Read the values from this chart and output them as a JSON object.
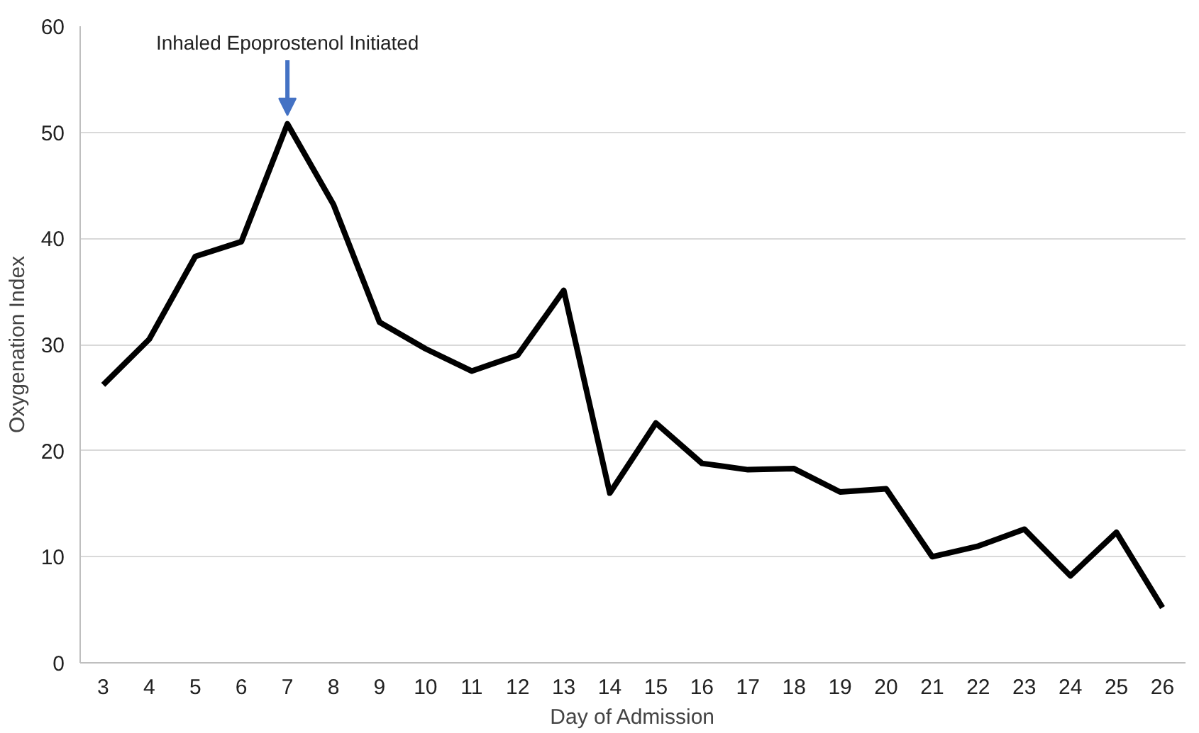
{
  "chart_data": {
    "type": "line",
    "xlabel": "Day of Admission",
    "ylabel": "Oxygenation Index",
    "categories": [
      "3",
      "4",
      "5",
      "6",
      "7",
      "8",
      "9",
      "10",
      "11",
      "12",
      "13",
      "14",
      "15",
      "16",
      "17",
      "18",
      "19",
      "20",
      "21",
      "22",
      "23",
      "24",
      "25",
      "26"
    ],
    "series": [
      {
        "color": "#000000",
        "values": [
          26.2,
          30.5,
          38.3,
          39.7,
          50.8,
          43.2,
          32.1,
          29.6,
          27.5,
          29.0,
          35.1,
          16.0,
          22.6,
          18.8,
          18.2,
          18.3,
          16.1,
          16.4,
          10.0,
          11.0,
          12.6,
          8.2,
          12.3,
          5.2
        ]
      }
    ],
    "annotations": [
      {
        "text": "Inhaled Epoprostenol Initiated",
        "x": "7",
        "y": 50.8
      }
    ],
    "ylim": [
      0,
      60
    ],
    "yticks": [
      0,
      10,
      20,
      30,
      40,
      50,
      60
    ],
    "grid": "y",
    "marker": "none",
    "line_style": "solid"
  }
}
